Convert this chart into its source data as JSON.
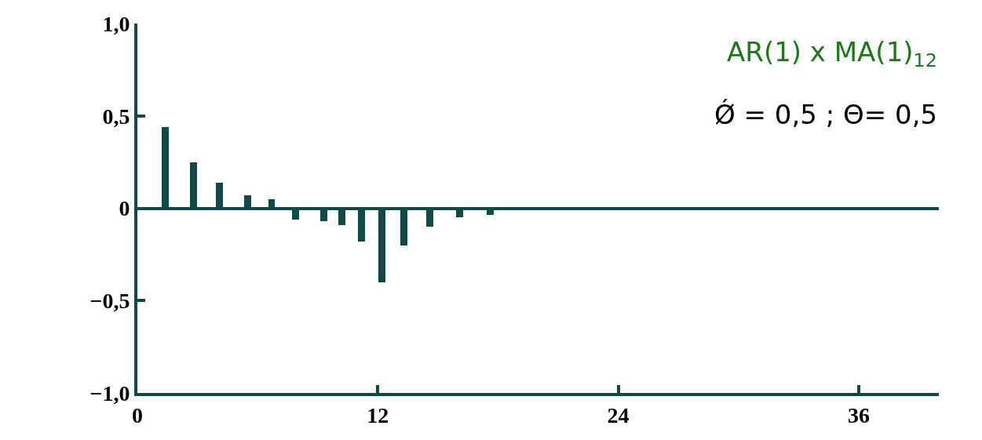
{
  "chart_data": {
    "type": "bar",
    "color": "#0e4a47",
    "x": [
      1.4,
      2.8,
      4.1,
      5.5,
      6.7,
      7.9,
      9.3,
      10.2,
      11.2,
      12.2,
      13.3,
      14.6,
      16.1,
      17.6
    ],
    "values": [
      0.44,
      0.25,
      0.14,
      0.07,
      0.05,
      -0.06,
      -0.07,
      -0.09,
      -0.18,
      -0.4,
      -0.2,
      -0.1,
      -0.05,
      -0.035
    ],
    "xlim": [
      0,
      40
    ],
    "xticks": [
      0,
      12,
      24,
      36
    ],
    "ylim": [
      -1.0,
      1.0
    ],
    "yticks": [
      {
        "value": 1.0,
        "label": "1,0"
      },
      {
        "value": 0.5,
        "label": "0,5"
      },
      0,
      {
        "value": -0.5,
        "label": "−0,5"
      },
      {
        "value": -1.0,
        "label": "−1,0"
      }
    ],
    "annotations": [
      "AR(1) x MA(1)$_{12}$",
      "Ǿ = 0,5 ; Θ= 0,5"
    ]
  }
}
